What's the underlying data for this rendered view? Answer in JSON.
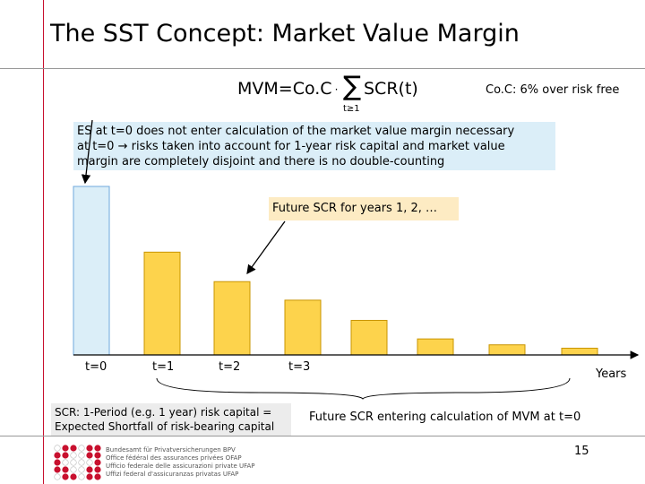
{
  "slide": {
    "title": "The SST Concept: Market Value Margin",
    "formula": {
      "lhs": "MVM=Co.C",
      "dot": "·",
      "sigma": "∑",
      "sum_index": "t≥1",
      "summand": "SCR(t)"
    },
    "coc_note": "Co.C: 6% over risk free",
    "es_note": {
      "line1": "ES at t=0 does not enter calculation of the market value margin necessary",
      "line2": "at t=0 → risks taken into account for 1-year risk capital and market value",
      "line3": "margin are completely disjoint and there is no double-counting"
    },
    "future_label": "Future SCR for years 1, 2, …",
    "axis": {
      "labels": [
        "t=0",
        "t=1",
        "t=2",
        "t=3"
      ],
      "unit": "Years"
    },
    "bars": {
      "values": [
        200,
        122,
        87,
        65,
        41,
        19,
        12,
        8
      ],
      "max": 200,
      "colors": {
        "t0": "#dbeef8",
        "t0_border": "#6fa8dc",
        "future": "#fdd34c",
        "future_border": "#c89400"
      }
    },
    "scr_note": {
      "line1": "SCR: 1-Period (e.g. 1 year) risk capital =",
      "line2": "Expected Shortfall of risk-bearing capital"
    },
    "entering_note": "Future SCR entering calculation of MVM at t=0",
    "page_number": "15",
    "footer": {
      "agency_lines": [
        "Bundesamt für Privatversicherungen BPV",
        "Office fédéral des assurances privées OFAP",
        "Ufficio federale delle assicurazioni private UFAP",
        "Uffizi federal d'assicuranzas privatas UFAP"
      ],
      "accent_color": "#c8102e"
    }
  }
}
